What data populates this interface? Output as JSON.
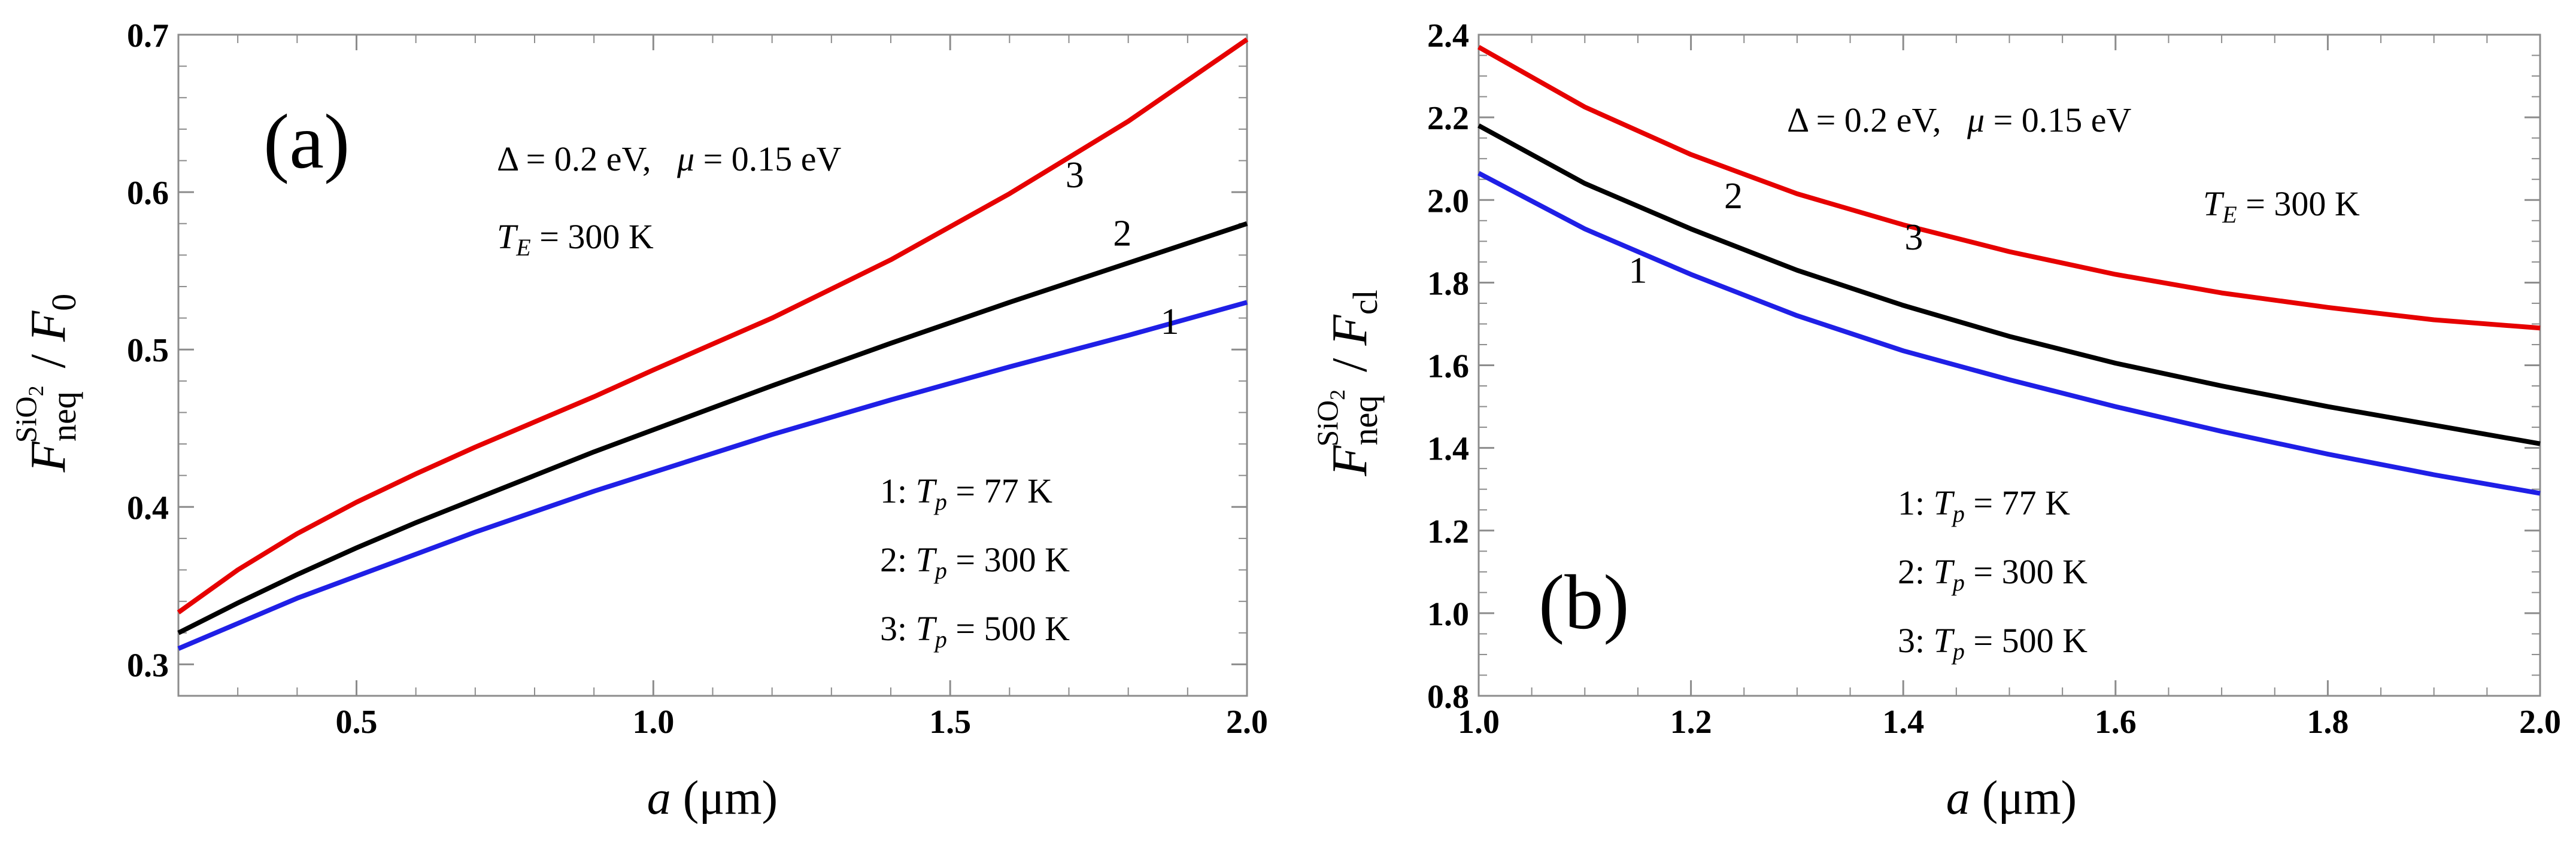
{
  "chart_data": [
    {
      "type": "line",
      "panel_label": "(a)",
      "xlabel": "a (μm)",
      "ylabel": "F_neq^SiO2 / F_0",
      "xlim": [
        0.2,
        2.0
      ],
      "ylim": [
        0.28,
        0.7
      ],
      "x_ticks": [
        "0.5",
        "1.0",
        "1.5",
        "2.0"
      ],
      "y_ticks": [
        "0.3",
        "0.4",
        "0.5",
        "0.6",
        "0.7"
      ],
      "annotations": [
        "Δ = 0.2 eV,   μ = 0.15 eV",
        "T_E = 300 K"
      ],
      "legend": [
        "1: T_p = 77 K",
        "2: T_p = 300 K",
        "3: T_p = 500 K"
      ],
      "series": [
        {
          "name": "1",
          "color": "#1f1fe6",
          "label": "1",
          "label_at": [
            1.87,
            0.51
          ],
          "x": [
            0.2,
            0.3,
            0.4,
            0.5,
            0.6,
            0.7,
            0.8,
            0.9,
            1.0,
            1.2,
            1.4,
            1.6,
            1.8,
            2.0
          ],
          "values": [
            0.31,
            0.326,
            0.342,
            0.356,
            0.37,
            0.384,
            0.397,
            0.41,
            0.422,
            0.446,
            0.468,
            0.489,
            0.509,
            0.53
          ]
        },
        {
          "name": "2",
          "color": "#000000",
          "label": "2",
          "label_at": [
            1.79,
            0.566
          ],
          "x": [
            0.2,
            0.3,
            0.4,
            0.5,
            0.6,
            0.7,
            0.8,
            0.9,
            1.0,
            1.2,
            1.4,
            1.6,
            1.8,
            2.0
          ],
          "values": [
            0.32,
            0.339,
            0.357,
            0.374,
            0.39,
            0.405,
            0.42,
            0.435,
            0.449,
            0.477,
            0.504,
            0.53,
            0.555,
            0.58
          ]
        },
        {
          "name": "3",
          "color": "#e60000",
          "label": "3",
          "label_at": [
            1.71,
            0.603
          ],
          "x": [
            0.2,
            0.3,
            0.4,
            0.5,
            0.6,
            0.7,
            0.8,
            0.9,
            1.0,
            1.2,
            1.4,
            1.6,
            1.8,
            2.0
          ],
          "values": [
            0.333,
            0.36,
            0.383,
            0.403,
            0.421,
            0.438,
            0.454,
            0.47,
            0.487,
            0.52,
            0.557,
            0.599,
            0.645,
            0.697
          ]
        }
      ]
    },
    {
      "type": "line",
      "panel_label": "(b)",
      "xlabel": "a (μm)",
      "ylabel": "F_neq^SiO2 / F_cl",
      "xlim": [
        1.0,
        2.0
      ],
      "ylim": [
        0.8,
        2.4
      ],
      "x_ticks": [
        "1.0",
        "1.2",
        "1.4",
        "1.6",
        "1.8",
        "2.0"
      ],
      "y_ticks": [
        "0.8",
        "1.0",
        "1.2",
        "1.4",
        "1.6",
        "1.8",
        "2.0",
        "2.2",
        "2.4"
      ],
      "annotations": [
        "Δ = 0.2 eV,   μ = 0.15 eV",
        "T_E = 300 K"
      ],
      "legend": [
        "1: T_p = 77 K",
        "2: T_p = 300 K",
        "3: T_p = 500 K"
      ],
      "series": [
        {
          "name": "1",
          "color": "#1f1fe6",
          "label": "1",
          "label_at": [
            1.15,
            1.8
          ],
          "x": [
            1.0,
            1.1,
            1.2,
            1.3,
            1.4,
            1.5,
            1.6,
            1.7,
            1.8,
            1.9,
            2.0
          ],
          "values": [
            2.065,
            1.93,
            1.82,
            1.72,
            1.635,
            1.565,
            1.5,
            1.44,
            1.385,
            1.335,
            1.29
          ]
        },
        {
          "name": "2",
          "color": "#000000",
          "label": "2",
          "label_at": [
            1.24,
            1.98
          ],
          "x": [
            1.0,
            1.1,
            1.2,
            1.3,
            1.4,
            1.5,
            1.6,
            1.7,
            1.8,
            1.9,
            2.0
          ],
          "values": [
            2.18,
            2.04,
            1.93,
            1.83,
            1.745,
            1.67,
            1.605,
            1.55,
            1.5,
            1.455,
            1.41
          ]
        },
        {
          "name": "3",
          "color": "#e60000",
          "label": "3",
          "label_at": [
            1.41,
            1.88
          ],
          "x": [
            1.0,
            1.1,
            1.2,
            1.3,
            1.4,
            1.5,
            1.6,
            1.7,
            1.8,
            1.9,
            2.0
          ],
          "values": [
            2.37,
            2.225,
            2.11,
            2.015,
            1.94,
            1.875,
            1.82,
            1.775,
            1.74,
            1.71,
            1.69
          ]
        }
      ]
    }
  ]
}
